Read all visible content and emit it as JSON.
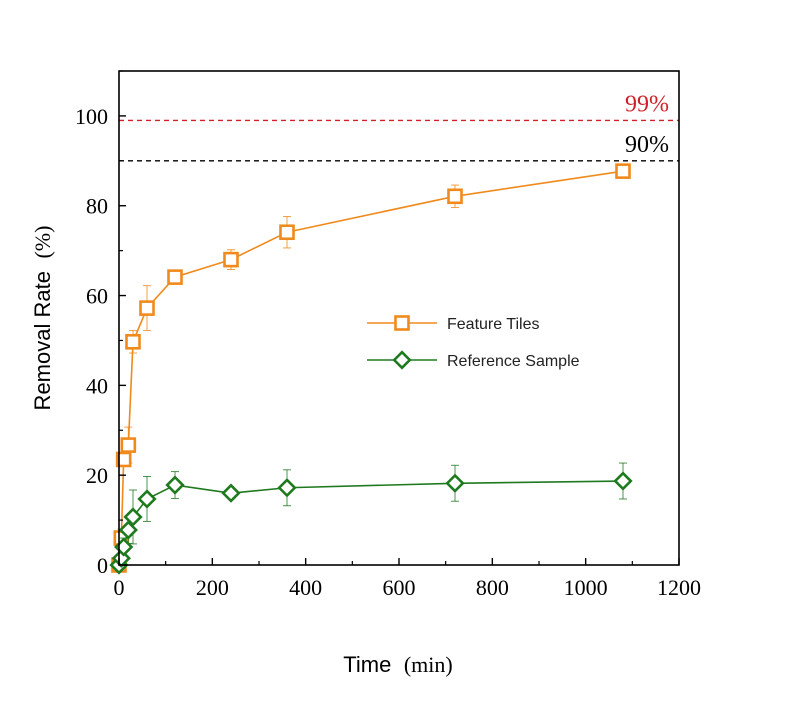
{
  "chart_data": {
    "type": "line",
    "xlabel_parts": [
      "Time",
      "(min)"
    ],
    "ylabel_parts": [
      "Removal Rate",
      "(%)"
    ],
    "xlim": [
      0,
      1200
    ],
    "ylim": [
      0,
      110
    ],
    "x_ticks": [
      "0",
      "200",
      "400",
      "600",
      "800",
      "1000",
      "1200"
    ],
    "y_ticks": [
      "0",
      "20",
      "40",
      "60",
      "80",
      "100"
    ],
    "x_tick_values": [
      0,
      200,
      400,
      600,
      800,
      1000,
      1200
    ],
    "y_tick_values": [
      0,
      20,
      40,
      60,
      80,
      100
    ],
    "grid": false,
    "legend_position": "center-right",
    "reference_lines": [
      {
        "value": 99,
        "label": "99%",
        "color": "#d0202a"
      },
      {
        "value": 90,
        "label": "90%",
        "color": "#000000"
      }
    ],
    "series": [
      {
        "name": "Feature Tiles",
        "color": "#f08a1c",
        "marker": "square",
        "x": [
          0,
          5,
          10,
          20,
          30,
          60,
          120,
          240,
          360,
          720,
          1080
        ],
        "y": [
          0,
          6,
          23.5,
          26.7,
          49.7,
          57.2,
          64.1,
          68.0,
          74.1,
          82.1,
          87.7
        ],
        "err": [
          0,
          2,
          1.5,
          4,
          2.5,
          5,
          1,
          2.2,
          3.5,
          2.5,
          1
        ]
      },
      {
        "name": "Reference Sample",
        "color": "#1f7a1f",
        "marker": "diamond",
        "x": [
          0,
          5,
          10,
          20,
          30,
          60,
          120,
          240,
          360,
          720,
          1080
        ],
        "y": [
          0,
          1.5,
          4.0,
          7.8,
          10.7,
          14.7,
          17.8,
          16.0,
          17.2,
          18.2,
          18.7
        ],
        "err": [
          0,
          1,
          2,
          3,
          6,
          5,
          3,
          1,
          4,
          4,
          4
        ]
      }
    ]
  }
}
